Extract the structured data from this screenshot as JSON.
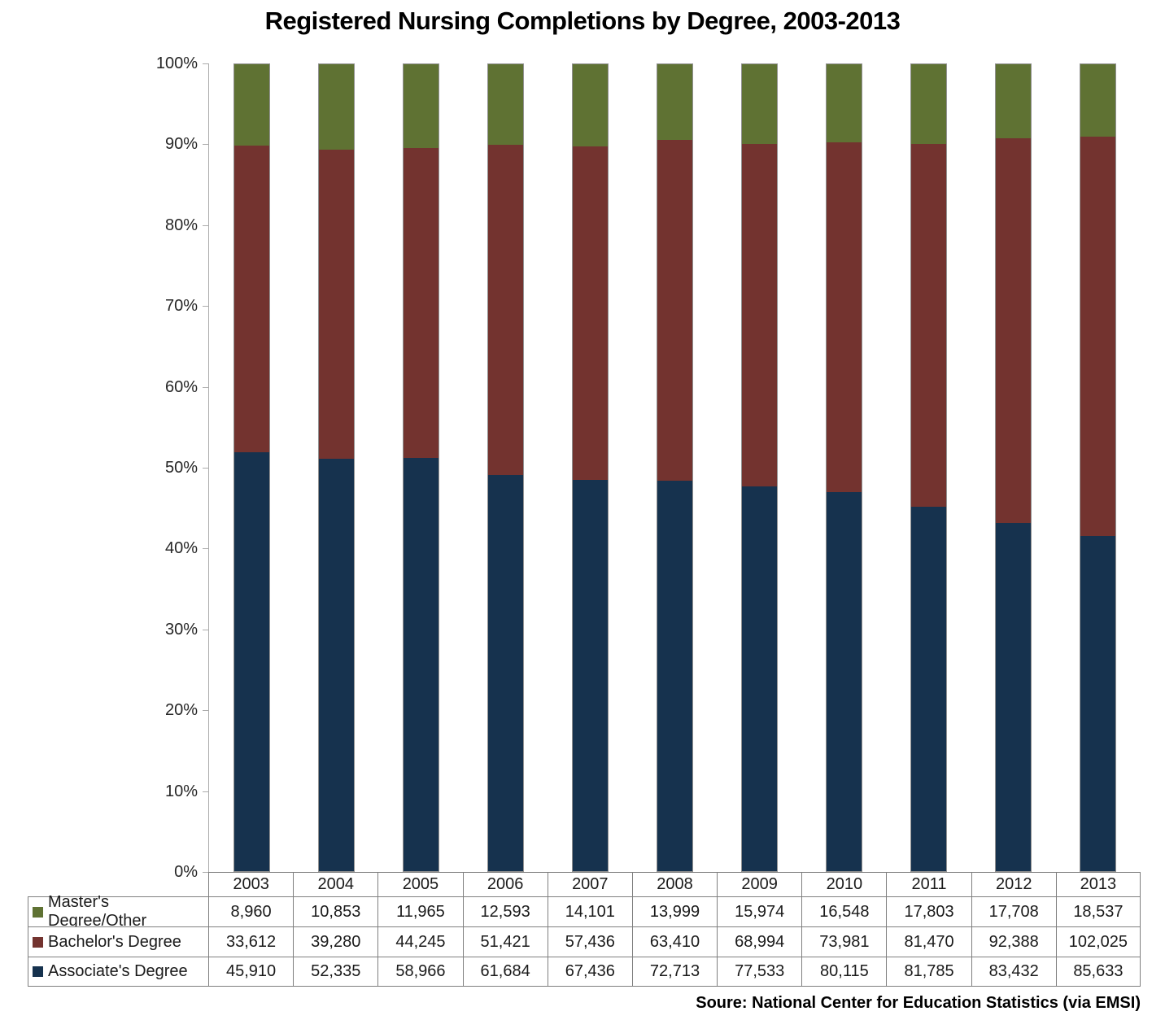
{
  "source_note": "Soure: National Center for Education Statistics (via EMSI)",
  "chart_data": {
    "type": "bar",
    "subtype": "stacked-100-percent",
    "title": "Registered Nursing Completions by Degree, 2003-2013",
    "categories": [
      "2003",
      "2004",
      "2005",
      "2006",
      "2007",
      "2008",
      "2009",
      "2010",
      "2011",
      "2012",
      "2013"
    ],
    "series": [
      {
        "name": "Master's Degree/Other",
        "color": "#5F7233",
        "values": [
          8960,
          10853,
          11965,
          12593,
          14101,
          13999,
          15974,
          16548,
          17803,
          17708,
          18537
        ]
      },
      {
        "name": "Bachelor's Degree",
        "color": "#73332F",
        "values": [
          33612,
          39280,
          44245,
          51421,
          57436,
          63410,
          68994,
          73981,
          81470,
          92388,
          102025
        ]
      },
      {
        "name": "Associate's Degree",
        "color": "#16324E",
        "values": [
          45910,
          52335,
          58966,
          61684,
          67436,
          72713,
          77533,
          80115,
          81785,
          83432,
          85633
        ]
      }
    ],
    "stack_order_bottom_to_top": [
      "Associate's Degree",
      "Bachelor's Degree",
      "Master's Degree/Other"
    ],
    "y_axis": {
      "min": 0,
      "max": 100,
      "step": 10,
      "tick_labels": [
        "0%",
        "10%",
        "20%",
        "30%",
        "40%",
        "50%",
        "60%",
        "70%",
        "80%",
        "90%",
        "100%"
      ]
    },
    "gridlines": false,
    "legend_position": "data-table-left",
    "data_table_shown": true
  }
}
